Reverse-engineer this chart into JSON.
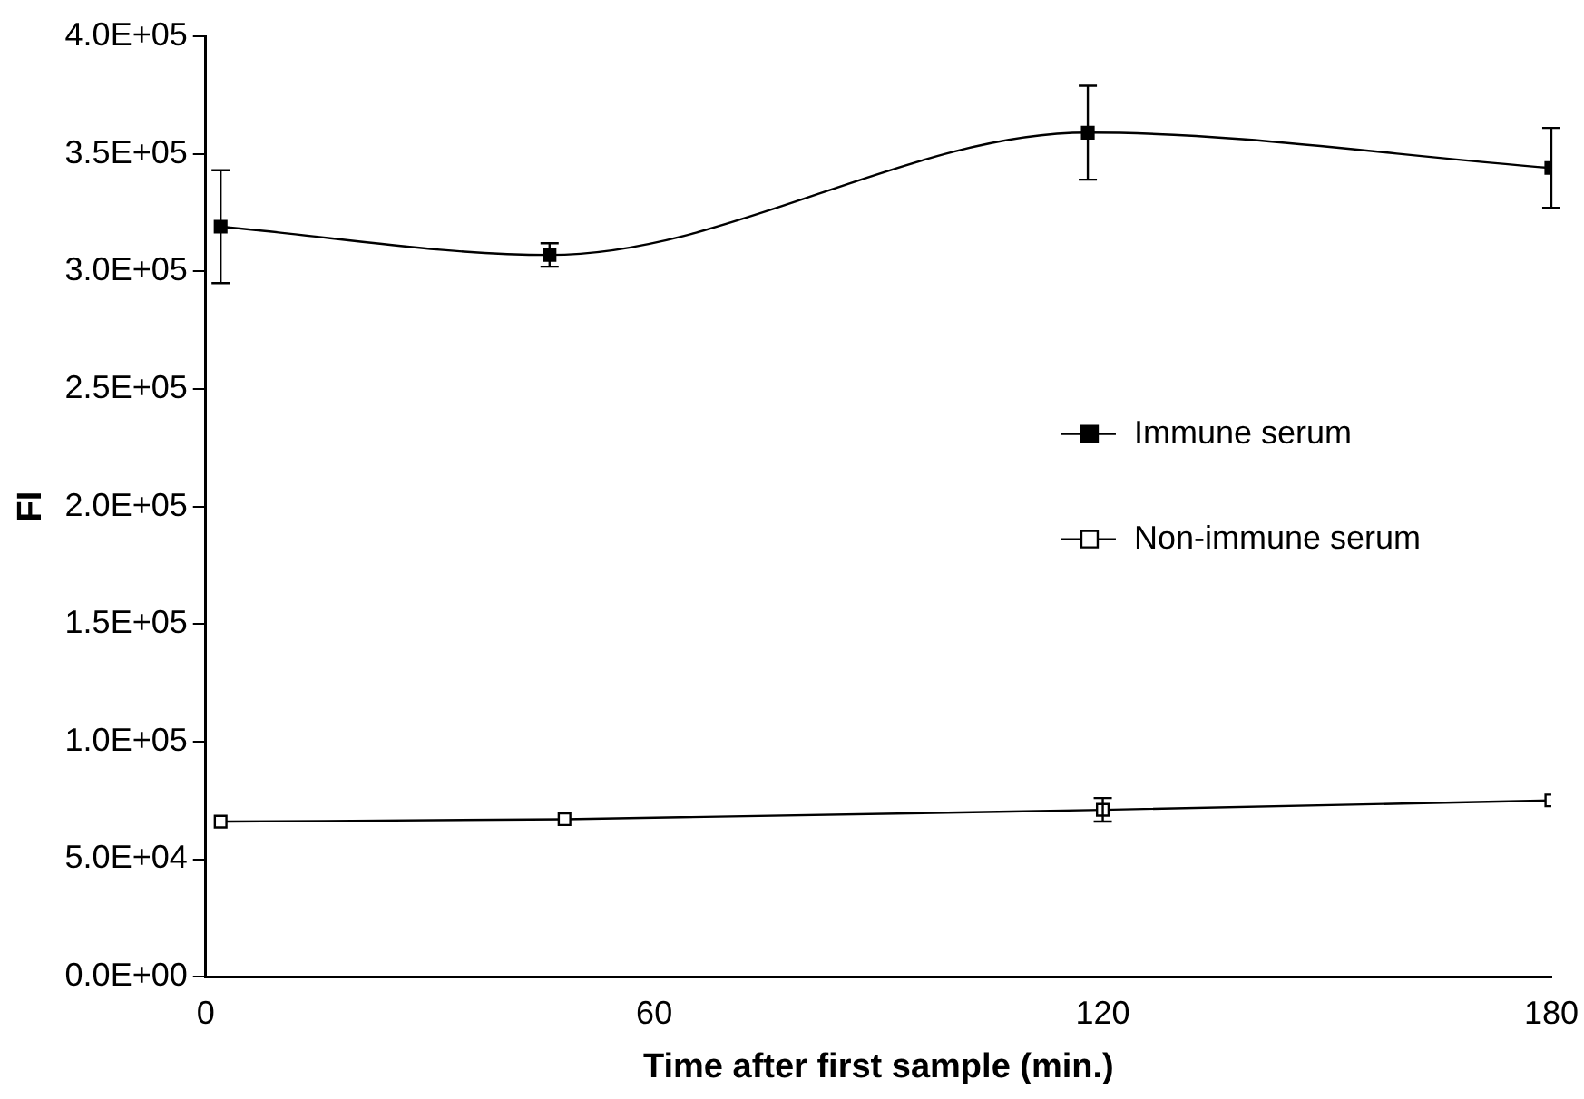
{
  "chart_data": {
    "type": "line",
    "xlabel": "Time after first sample (min.)",
    "ylabel": "FI",
    "x": [
      2,
      46,
      118,
      180
    ],
    "series": [
      {
        "name": "Immune serum",
        "color": "#000000",
        "values": [
          319000,
          307000,
          359000,
          344000
        ],
        "errors": [
          24000,
          5000,
          20000,
          17000
        ]
      },
      {
        "name": "Non-immune serum",
        "color": "#000000",
        "x": [
          2,
          48,
          120,
          180
        ],
        "values": [
          66000,
          67000,
          71000,
          75000
        ],
        "errors": [
          null,
          null,
          5000,
          null
        ]
      }
    ],
    "xlim": [
      0,
      180
    ],
    "xticks": [
      0,
      60,
      120,
      180
    ],
    "ylim": [
      0,
      400000
    ],
    "yticks": [
      {
        "value": 0,
        "label": "0.0E+00"
      },
      {
        "value": 50000,
        "label": "5.0E+04"
      },
      {
        "value": 100000,
        "label": "1.0E+05"
      },
      {
        "value": 150000,
        "label": "1.5E+05"
      },
      {
        "value": 200000,
        "label": "2.0E+05"
      },
      {
        "value": 250000,
        "label": "2.5E+05"
      },
      {
        "value": 300000,
        "label": "3.0E+05"
      },
      {
        "value": 350000,
        "label": "3.5E+05"
      },
      {
        "value": 400000,
        "label": "4.0E+05"
      }
    ],
    "grid": false,
    "legend": "right",
    "marker": "square",
    "line_style": "solid"
  }
}
